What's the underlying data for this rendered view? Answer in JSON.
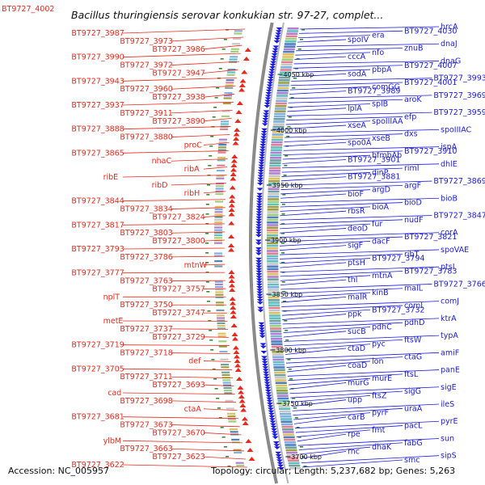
{
  "header": {
    "title": "Bacillus thuringiensis serovar konkukian str. 97-27, complet...",
    "corner_label": "BT9727_4002"
  },
  "footer": {
    "accession": "Accession: NC_005957",
    "topology": "Topology: circular; Length: 5,237,682 bp; Genes: 5,263"
  },
  "colors": {
    "reverse_strand": "#e8291c",
    "forward_strand": "#1a1adf",
    "backbone": "#8a8a8a",
    "tick_green": "#2e8b2e"
  },
  "kbp_ticks": [
    {
      "label": "4050 kbp"
    },
    {
      "label": "4000 kbp"
    },
    {
      "label": "3950 kbp"
    },
    {
      "label": "3900 kbp"
    },
    {
      "label": "3850 kbp"
    },
    {
      "label": "3800 kbp"
    },
    {
      "label": "3750 kbp"
    },
    {
      "label": "3700 kbp"
    }
  ],
  "left_labels": [
    "BT9727_3987",
    "BT9727_3973",
    "BT9727_3986",
    "BT9727_3990",
    "BT9727_3972",
    "BT9727_3947",
    "BT9727_3943",
    "BT9727_3960",
    "BT9727_3938",
    "BT9727_3937",
    "BT9727_3911",
    "BT9727_3890",
    "BT9727_3888",
    "BT9727_3880",
    "proC",
    "BT9727_3865",
    "nhaC",
    "ribA",
    "ribE",
    "ribD",
    "ribH",
    "BT9727_3844",
    "BT9727_3834",
    "BT9727_3824",
    "BT9727_3817",
    "BT9727_3803",
    "BT9727_3800",
    "BT9727_3793",
    "BT9727_3786",
    "mtnW",
    "BT9727_3777",
    "BT9727_3763",
    "BT9727_3757",
    "nplT",
    "BT9727_3750",
    "BT9727_3747",
    "metE",
    "BT9727_3737",
    "BT9727_3729",
    "BT9727_3719",
    "BT9727_3718",
    "def",
    "BT9727_3705",
    "BT9727_3711",
    "BT9727_3693",
    "cad",
    "BT9727_3698",
    "ctaA",
    "BT9727_3681",
    "BT9727_3673",
    "BT9727_3670",
    "ylbM",
    "BT9727_3663",
    "BT9727_3623",
    "BT9727_3622"
  ],
  "right_labels": [
    "hrcA",
    "BT9727_4030",
    "era",
    "spoIV",
    "dnaJ",
    "znuB",
    "nfo",
    "cccA",
    "dnaG",
    "BT9727_4007",
    "pbpA",
    "sodA",
    "BT9727_3993",
    "BT9727_4001",
    "comGG",
    "BT9727_3989",
    "BT9727_3969",
    "aroK",
    "splB",
    "lplA",
    "BT9727_3959",
    "efp",
    "spoIIIAA",
    "xseA",
    "spoIIIAC",
    "dxs",
    "xseB",
    "spo0A",
    "ispA",
    "BT9727_3910",
    "bfmbAb",
    "BT9727_3901",
    "dhlE",
    "rimI",
    "dinP",
    "BT9727_3881",
    "BT9727_3869",
    "argF",
    "argD",
    "bioF",
    "bioB",
    "bioD",
    "bioA",
    "rbsR",
    "BT9727_3847",
    "nudF",
    "fur",
    "deoD",
    "corA",
    "BT9727_3821",
    "dacF",
    "sigF",
    "spoVAE",
    "ribT",
    "BT9727_3794",
    "ptsH",
    "ptsI",
    "BT9727_3783",
    "mtnA",
    "thl",
    "BT9727_3766",
    "malL",
    "kinB",
    "malR",
    "comJ",
    "comI",
    "BT9727_3732",
    "ppk",
    "ktrA",
    "pdhD",
    "pdhC",
    "sucB",
    "typA",
    "ftsW",
    "pyc",
    "ctaD",
    "amiF",
    "ctaG",
    "lon",
    "coaD",
    "panE",
    "ftsL",
    "murE",
    "murG",
    "sigE",
    "sigG",
    "ftsZ",
    "upp",
    "ileS",
    "uraA",
    "pyrF",
    "carB",
    "pyrE",
    "pacL",
    "fmt",
    "rpe",
    "sun",
    "fabG",
    "dhaK",
    "rnc",
    "sipS",
    "smc"
  ]
}
